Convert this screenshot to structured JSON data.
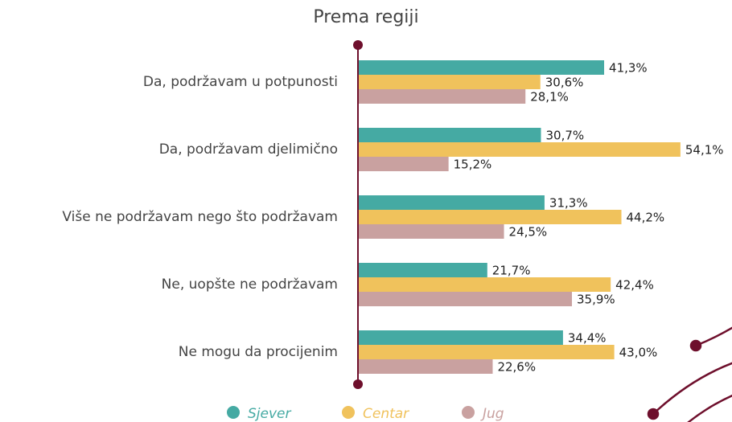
{
  "chart_data": {
    "type": "bar",
    "orientation": "horizontal",
    "title": "Prema regiji",
    "categories": [
      "Da, podržavam u potpunosti",
      "Da, podržavam djelimično",
      "Više ne podržavam nego što podržavam",
      "Ne, uopšte ne podržavam",
      "Ne mogu da procijenim"
    ],
    "series": [
      {
        "name": "Sjever",
        "color": "#45aaa3",
        "values": [
          41.3,
          30.7,
          31.3,
          21.7,
          34.4
        ],
        "value_labels": [
          "41,3%",
          "30,7%",
          "31,3%",
          "21,7%",
          "34,4%"
        ]
      },
      {
        "name": "Centar",
        "color": "#f0c25c",
        "values": [
          30.6,
          54.1,
          44.2,
          42.4,
          43.0
        ],
        "value_labels": [
          "30,6%",
          "54,1%",
          "44,2%",
          "42,4%",
          "43,0%"
        ]
      },
      {
        "name": "Jug",
        "color": "#c9a1a0",
        "values": [
          28.1,
          15.2,
          24.5,
          35.9,
          22.6
        ],
        "value_labels": [
          "28,1%",
          "15,2%",
          "24,5%",
          "35,9%",
          "22,6%"
        ]
      }
    ]
  }
}
